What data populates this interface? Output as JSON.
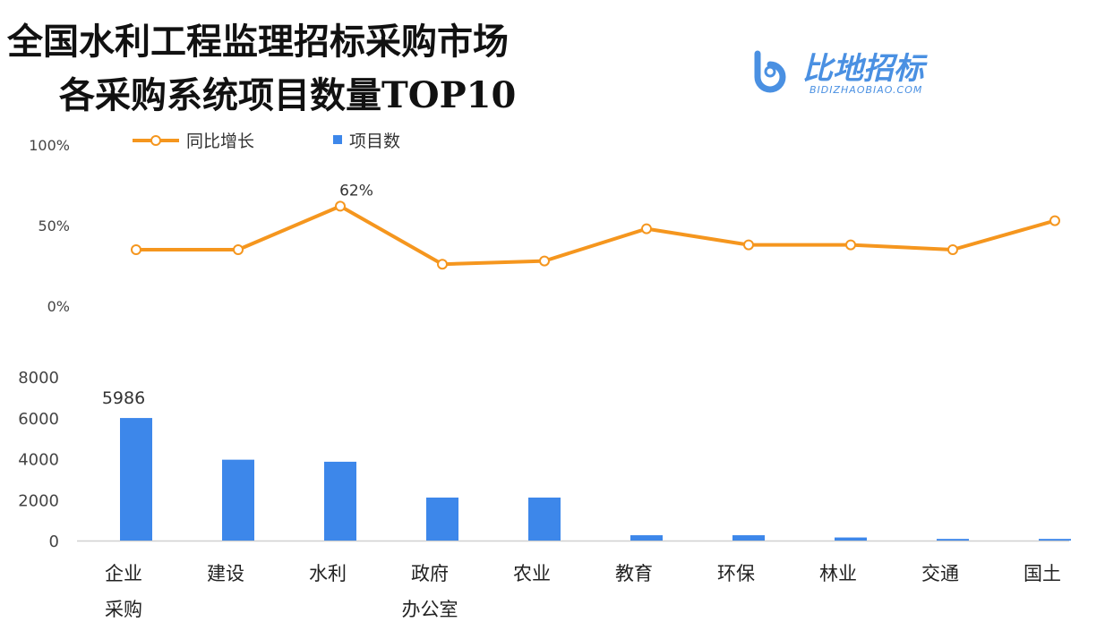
{
  "title_line1": "全国水利工程监理招标采购市场",
  "title_line2": "各采购系统项目数量TOP10",
  "logo": {
    "text": "比地招标",
    "subtext": "BIDIZHAOBIAO.COM",
    "color": "#4a90e2"
  },
  "chart_data": [
    {
      "type": "line",
      "series": [
        {
          "name": "同比增长",
          "color": "#f5961e",
          "values": [
            35,
            35,
            62,
            26,
            28,
            48,
            38,
            38,
            35,
            53
          ]
        }
      ],
      "categories": [
        "企业采购",
        "建设",
        "水利",
        "政府办公室",
        "农业",
        "教育",
        "环保",
        "林业",
        "交通",
        "国土"
      ],
      "ylim": [
        0,
        100
      ],
      "yticks": [
        "0%",
        "50%",
        "100%"
      ],
      "data_labels": [
        {
          "index": 2,
          "text": "62%"
        }
      ],
      "grid": false,
      "legend": "top-left"
    },
    {
      "type": "bar",
      "series": [
        {
          "name": "项目数",
          "color": "#3d87ea",
          "values": [
            5986,
            3950,
            3850,
            2100,
            2100,
            260,
            260,
            150,
            80,
            80
          ]
        }
      ],
      "categories": [
        [
          "企业",
          "采购"
        ],
        [
          "建设"
        ],
        [
          "水利"
        ],
        [
          "政府",
          "办公室"
        ],
        [
          "农业"
        ],
        [
          "教育"
        ],
        [
          "环保"
        ],
        [
          "林业"
        ],
        [
          "交通"
        ],
        [
          "国土"
        ]
      ],
      "ylim": [
        0,
        8000
      ],
      "yticks": [
        "0",
        "2000",
        "4000",
        "6000",
        "8000"
      ],
      "data_labels": [
        {
          "index": 0,
          "text": "5986"
        }
      ],
      "grid": false
    }
  ]
}
